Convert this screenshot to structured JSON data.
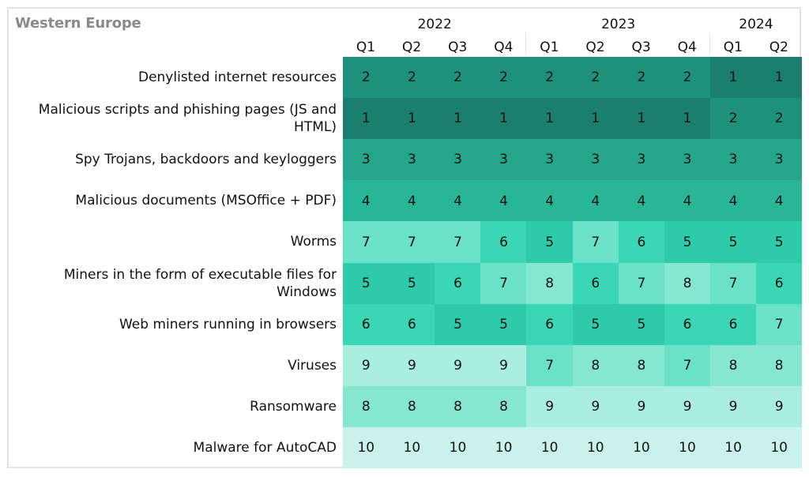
{
  "region": "Western Europe",
  "chart_data": {
    "type": "heatmap",
    "title": "Western Europe",
    "years": [
      {
        "label": "2022",
        "quarters": 4
      },
      {
        "label": "2023",
        "quarters": 4
      },
      {
        "label": "2024",
        "quarters": 2
      }
    ],
    "columns": [
      "Q1",
      "Q2",
      "Q3",
      "Q4",
      "Q1",
      "Q2",
      "Q3",
      "Q4",
      "Q1",
      "Q2"
    ],
    "rows": [
      {
        "label": "Denylisted internet resources",
        "values": [
          2,
          2,
          2,
          2,
          2,
          2,
          2,
          2,
          1,
          1
        ]
      },
      {
        "label": "Malicious scripts and phishing pages (JS and HTML)",
        "values": [
          1,
          1,
          1,
          1,
          1,
          1,
          1,
          1,
          2,
          2
        ]
      },
      {
        "label": "Spy Trojans, backdoors and keyloggers",
        "values": [
          3,
          3,
          3,
          3,
          3,
          3,
          3,
          3,
          3,
          3
        ]
      },
      {
        "label": "Malicious documents (MSOffice + PDF)",
        "values": [
          4,
          4,
          4,
          4,
          4,
          4,
          4,
          4,
          4,
          4
        ]
      },
      {
        "label": "Worms",
        "values": [
          7,
          7,
          7,
          6,
          5,
          7,
          6,
          5,
          5,
          5
        ]
      },
      {
        "label": "Miners in the form of executable files for Windows",
        "values": [
          5,
          5,
          6,
          7,
          8,
          6,
          7,
          8,
          7,
          6
        ]
      },
      {
        "label": "Web miners running in browsers",
        "values": [
          6,
          6,
          5,
          5,
          6,
          5,
          5,
          6,
          6,
          7
        ]
      },
      {
        "label": "Viruses",
        "values": [
          9,
          9,
          9,
          9,
          7,
          8,
          8,
          7,
          8,
          8
        ]
      },
      {
        "label": "Ransomware",
        "values": [
          8,
          8,
          8,
          8,
          9,
          9,
          9,
          9,
          9,
          9
        ]
      },
      {
        "label": "Malware for AutoCAD",
        "values": [
          10,
          10,
          10,
          10,
          10,
          10,
          10,
          10,
          10,
          10
        ]
      }
    ],
    "color_scale": {
      "1": "#1a7f6c",
      "2": "#1e917a",
      "3": "#25a58a",
      "4": "#27b797",
      "5": "#2dcbaa",
      "6": "#3ad6b5",
      "7": "#6be2c8",
      "8": "#86e7d1",
      "9": "#a9eedf",
      "10": "#c9f3ea"
    }
  }
}
